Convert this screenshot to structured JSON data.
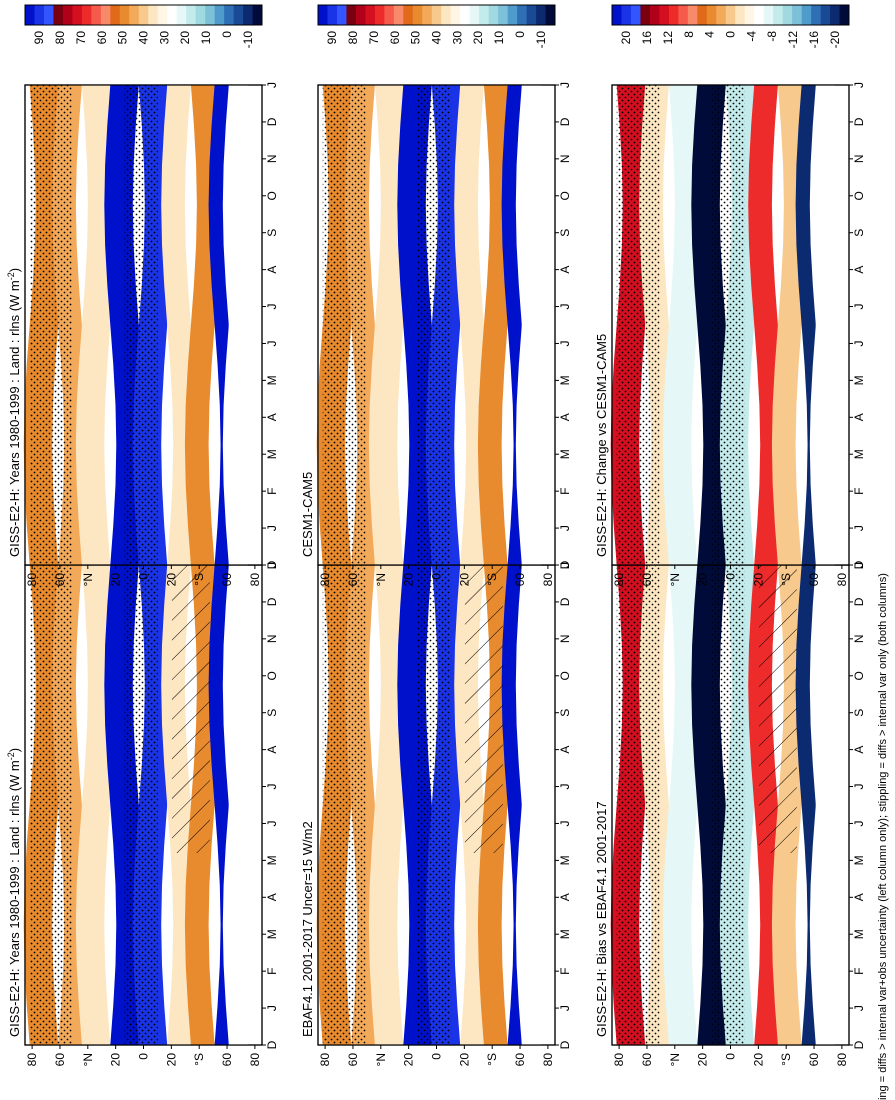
{
  "footnote": "hatching = diffs > internal var+obs uncertainty (left column only); stippling = diffs > internal var only (both columns)",
  "month_labels": [
    "D",
    "J",
    "F",
    "M",
    "A",
    "M",
    "J",
    "J",
    "A",
    "S",
    "O",
    "N",
    "D",
    "J"
  ],
  "lat_labels": [
    "80",
    "60",
    "°N",
    "20",
    "0",
    "20",
    "°S",
    "60",
    "80"
  ],
  "colorbar_abs": {
    "labels": [
      "90",
      "80",
      "70",
      "60",
      "50",
      "40",
      "30",
      "20",
      "10",
      "0",
      "-10"
    ],
    "colors": [
      "#0011cc",
      "#1a33e6",
      "#3355ff",
      "#7a0010",
      "#b0001a",
      "#d40f1f",
      "#ee2b2b",
      "#f55a4a",
      "#f88a6a",
      "#e06a1a",
      "#e88a2e",
      "#f3a95a",
      "#f8c98c",
      "#fde7c2",
      "#fff6e5",
      "#ffffff",
      "#e6f7f7",
      "#c4ebec",
      "#a0d9e0",
      "#7cc1d8",
      "#4f9ccc",
      "#2e6fb6",
      "#1a4a96",
      "#0b2a70",
      "#000b3a"
    ]
  },
  "colorbar_diff": {
    "labels": [
      "20",
      "16",
      "12",
      "8",
      "4",
      "0",
      "-4",
      "-8",
      "-12",
      "-16",
      "-20"
    ],
    "colors": [
      "#0011cc",
      "#1a33e6",
      "#3355ff",
      "#7a0010",
      "#b0001a",
      "#d40f1f",
      "#ee2b2b",
      "#f55a4a",
      "#f88a6a",
      "#e06a1a",
      "#e88a2e",
      "#f3a95a",
      "#f8c98c",
      "#fde7c2",
      "#fff6e5",
      "#ffffff",
      "#e6f7f7",
      "#c4ebec",
      "#a0d9e0",
      "#7cc1d8",
      "#4f9ccc",
      "#2e6fb6",
      "#1a4a96",
      "#0b2a70",
      "#000b3a"
    ]
  },
  "panels": [
    {
      "title": "GISS-E2-H: Years 1980-1999 : Land : rlns (W m",
      "title_sup": "-2",
      "title_end": ")",
      "kind": "abs",
      "hatch": true
    },
    {
      "title": "GISS-E2-H: Years 1980-1999 : Land : rlns (W m",
      "title_sup": "-2",
      "title_end": ")",
      "kind": "abs",
      "hatch": false
    },
    {
      "title": "EBAF4.1 2001-2017 Uncer=15 W/m2",
      "title_sup": "",
      "title_end": "",
      "kind": "abs",
      "hatch": true
    },
    {
      "title": "CESM1-CAM5",
      "title_sup": "",
      "title_end": "",
      "kind": "abs",
      "hatch": false
    },
    {
      "title": "GISS-E2-H: Bias vs EBAF4.1 2001-2017",
      "title_sup": "",
      "title_end": "",
      "kind": "diff",
      "hatch": true
    },
    {
      "title": "GISS-E2-H: Change vs CESM1-CAM5",
      "title_sup": "",
      "title_end": "",
      "kind": "diff",
      "hatch": false
    }
  ],
  "chart_data": {
    "type": "heatmap",
    "x_axis": "month (D..J, seasonal cycle)",
    "y_axis": "latitude (80°N to 80°S)",
    "panels": [
      {
        "title": "GISS-E2-H: Years 1980-1999 : Land : rlns (W m-2)",
        "colorbar_range": [
          -10,
          90
        ]
      },
      {
        "title": "GISS-E2-H: Years 1980-1999 : Land : rlns (W m-2)",
        "colorbar_range": [
          -10,
          90
        ]
      },
      {
        "title": "EBAF4.1 2001-2017 Uncer=15 W/m2",
        "colorbar_range": [
          -10,
          90
        ]
      },
      {
        "title": "CESM1-CAM5",
        "colorbar_range": [
          -10,
          90
        ]
      },
      {
        "title": "GISS-E2-H: Bias vs EBAF4.1 2001-2017",
        "colorbar_range": [
          -20,
          20
        ]
      },
      {
        "title": "GISS-E2-H: Change vs CESM1-CAM5",
        "colorbar_range": [
          -20,
          20
        ]
      }
    ]
  }
}
